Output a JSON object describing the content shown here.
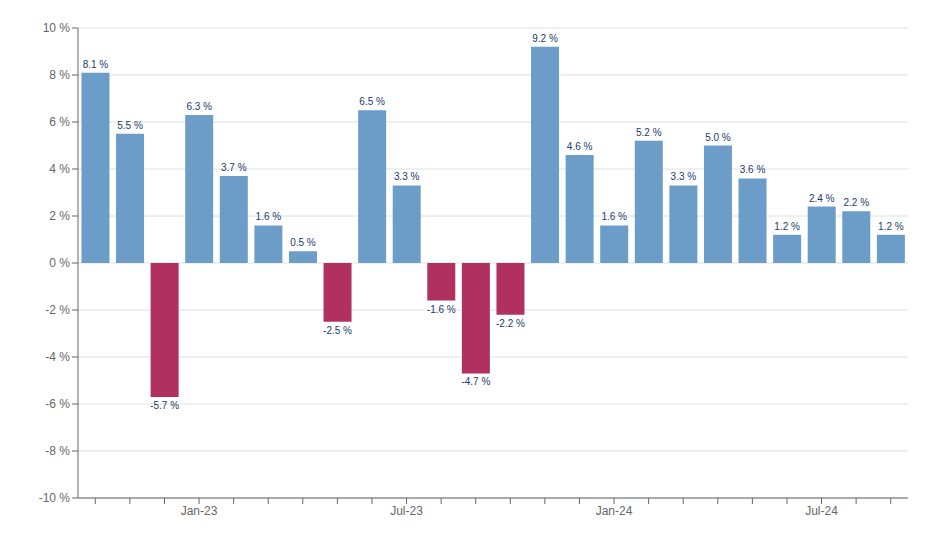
{
  "chart_data": {
    "type": "bar",
    "categories": [
      null,
      null,
      null,
      "Jan-23",
      null,
      null,
      null,
      null,
      null,
      "Jul-23",
      null,
      null,
      null,
      null,
      null,
      "Jan-24",
      null,
      null,
      null,
      null,
      null,
      "Jul-24",
      null,
      null
    ],
    "values": [
      8.1,
      5.5,
      -5.7,
      6.3,
      3.7,
      1.6,
      0.5,
      -2.5,
      6.5,
      3.3,
      -1.6,
      -4.7,
      -2.2,
      9.2,
      4.6,
      1.6,
      5.2,
      3.3,
      5.0,
      3.6,
      1.2,
      2.4,
      2.2,
      1.2
    ],
    "value_labels": [
      "8.1 %",
      "5.5 %",
      "-5.7 %",
      "6.3 %",
      "3.7 %",
      "1.6 %",
      "0.5 %",
      "-2.5 %",
      "6.5 %",
      "3.3 %",
      "-1.6 %",
      "-4.7 %",
      "-2.2 %",
      "9.2 %",
      "4.6 %",
      "1.6 %",
      "5.2 %",
      "3.3 %",
      "5.0 %",
      "3.6 %",
      "1.2 %",
      "2.4 %",
      "2.2 %",
      "1.2 %"
    ],
    "colors": [
      "#6b9dc8",
      "#6b9dc8",
      "#b03060",
      "#6b9dc8",
      "#6b9dc8",
      "#6b9dc8",
      "#6b9dc8",
      "#b03060",
      "#6b9dc8",
      "#6b9dc8",
      "#b03060",
      "#b03060",
      "#b03060",
      "#6b9dc8",
      "#6b9dc8",
      "#6b9dc8",
      "#6b9dc8",
      "#6b9dc8",
      "#6b9dc8",
      "#6b9dc8",
      "#6b9dc8",
      "#6b9dc8",
      "#6b9dc8",
      "#6b9dc8"
    ],
    "ylim": [
      -10,
      10
    ],
    "yticks": [
      {
        "value": -10,
        "label": "-10 %"
      },
      {
        "value": -8,
        "label": "-8 %"
      },
      {
        "value": -6,
        "label": "-6 %"
      },
      {
        "value": -4,
        "label": "-4 %"
      },
      {
        "value": -2,
        "label": "-2 %"
      },
      {
        "value": 0,
        "label": "0 %"
      },
      {
        "value": 2,
        "label": "2 %"
      },
      {
        "value": 4,
        "label": "4 %"
      },
      {
        "value": 6,
        "label": "6 %"
      },
      {
        "value": 8,
        "label": "8 %"
      },
      {
        "value": 10,
        "label": "10 %"
      }
    ],
    "grid": true,
    "data_labels": true
  }
}
